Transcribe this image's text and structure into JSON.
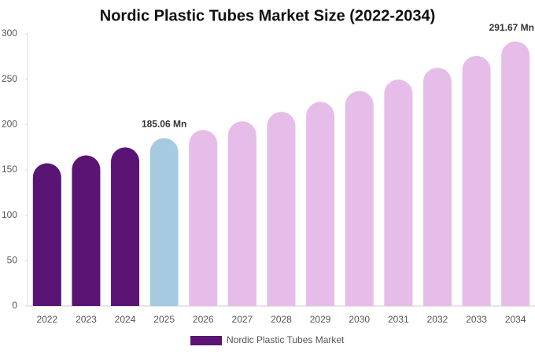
{
  "chart_data": {
    "type": "bar",
    "title": "Nordic Plastic Tubes Market Size (2022-2034)",
    "categories": [
      "2022",
      "2023",
      "2024",
      "2025",
      "2026",
      "2027",
      "2028",
      "2029",
      "2030",
      "2031",
      "2032",
      "2033",
      "2034"
    ],
    "series": [
      {
        "name": "Nordic Plastic Tubes Market",
        "color": "#5a1473",
        "values": [
          157.4,
          166,
          174.8,
          185.06,
          194,
          203.5,
          214,
          225,
          237,
          249.6,
          262.6,
          275.7,
          291.67
        ],
        "colors": [
          "#5a1473",
          "#5a1473",
          "#5a1473",
          "#a6cbe0",
          "#e6bde8",
          "#e6bde8",
          "#e6bde8",
          "#e6bde8",
          "#e6bde8",
          "#e6bde8",
          "#e6bde8",
          "#e6bde8",
          "#e6bde8"
        ],
        "value_labels": [
          null,
          null,
          null,
          "185.06 Mn",
          null,
          null,
          null,
          null,
          null,
          null,
          null,
          null,
          "291.67 Mn"
        ]
      }
    ],
    "ylim": [
      0,
      300
    ],
    "yticks": [
      0,
      50,
      100,
      150,
      200,
      250,
      300
    ],
    "legend": "bottom"
  }
}
